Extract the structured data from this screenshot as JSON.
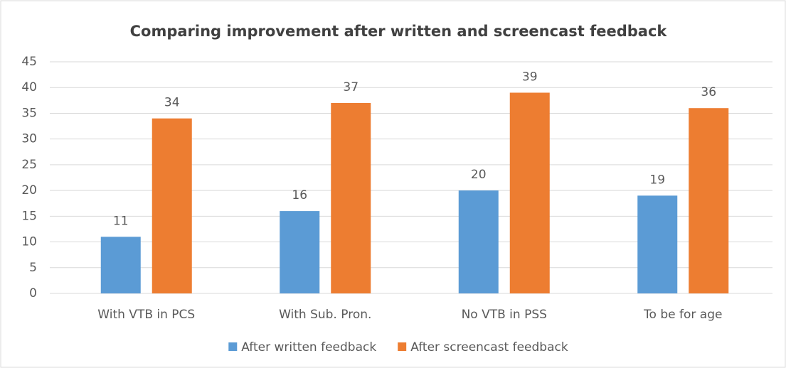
{
  "chart_data": {
    "type": "bar",
    "title": "Comparing improvement after written and screencast feedback",
    "categories": [
      "With VTB in PCS",
      "With Sub. Pron.",
      "No VTB in PSS",
      "To be for age"
    ],
    "series": [
      {
        "name": "After written feedback",
        "color": "#5b9bd5",
        "values": [
          11,
          16,
          20,
          19
        ]
      },
      {
        "name": "After screencast feedback",
        "color": "#ed7d31",
        "values": [
          34,
          37,
          39,
          36
        ]
      }
    ],
    "ylim": [
      0,
      45
    ],
    "yticks": [
      0,
      5,
      10,
      15,
      20,
      25,
      30,
      35,
      40,
      45
    ],
    "grid": true,
    "legend": "bottom"
  }
}
